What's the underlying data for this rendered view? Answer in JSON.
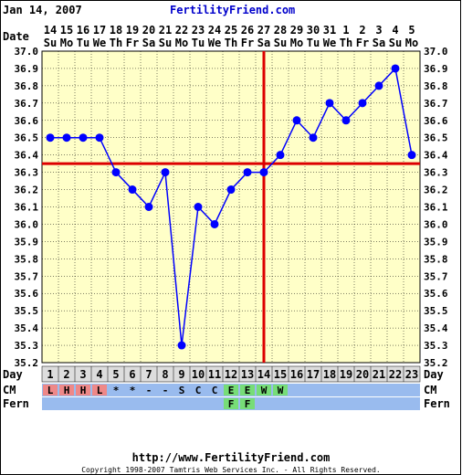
{
  "header": {
    "date_title": "Jan 14, 2007",
    "brand": "FertilityFriend.com"
  },
  "footer": {
    "url": "http://www.FertilityFriend.com",
    "copyright": "Copyright 1998-2007 Tamtris Web Services Inc. - All Rights Reserved."
  },
  "row_labels": {
    "date": "Date",
    "day": "Day",
    "cm": "CM",
    "fern": "Fern"
  },
  "colors": {
    "plot_bg": "#ffffc8",
    "line": "#0000ff",
    "marker": "#0000ff",
    "coverline": "#dd0000",
    "grid": "#000000",
    "cm_bg": "#99bbee",
    "cm_red": "#ee8888",
    "cm_green": "#77dd77",
    "day_bg": "#dddddd"
  },
  "chart_data": {
    "type": "line",
    "x": [
      "14",
      "15",
      "16",
      "17",
      "18",
      "19",
      "20",
      "21",
      "22",
      "23",
      "24",
      "25",
      "26",
      "27",
      "28",
      "29",
      "30",
      "31",
      "1",
      "2",
      "3",
      "4",
      "5"
    ],
    "weekdays": [
      "Su",
      "Mo",
      "Tu",
      "We",
      "Th",
      "Fr",
      "Sa",
      "Su",
      "Mo",
      "Tu",
      "We",
      "Th",
      "Fr",
      "Sa",
      "Su",
      "Mo",
      "Tu",
      "We",
      "Th",
      "Fr",
      "Sa",
      "Su",
      "Mo"
    ],
    "cycle_days": [
      "1",
      "2",
      "3",
      "4",
      "5",
      "6",
      "7",
      "8",
      "9",
      "10",
      "11",
      "12",
      "13",
      "14",
      "15",
      "16",
      "17",
      "18",
      "19",
      "20",
      "21",
      "22",
      "23"
    ],
    "series": [
      {
        "values": [
          36.5,
          36.5,
          36.5,
          36.5,
          36.3,
          36.2,
          36.1,
          36.3,
          35.3,
          36.1,
          36.0,
          36.2,
          36.3,
          36.3,
          36.4,
          36.6,
          36.5,
          36.7,
          36.6,
          36.7,
          36.8,
          36.9,
          36.4
        ]
      }
    ],
    "ylim": [
      35.2,
      37.0
    ],
    "yticks": [
      "35.2",
      "35.3",
      "35.4",
      "35.5",
      "35.6",
      "35.7",
      "35.8",
      "35.9",
      "36.0",
      "36.1",
      "36.2",
      "36.3",
      "36.4",
      "36.5",
      "36.6",
      "36.7",
      "36.8",
      "36.9",
      "37.0"
    ],
    "coverline": 36.35,
    "ovulation_day_index": 13,
    "cm": [
      "L",
      "H",
      "H",
      "L",
      "*",
      "*",
      "-",
      "-",
      "S",
      "C",
      "C",
      "E",
      "E",
      "W",
      "W",
      "",
      "",
      "",
      "",
      "",
      "",
      "",
      ""
    ],
    "fern": [
      "",
      "",
      "",
      "",
      "",
      "",
      "",
      "",
      "",
      "",
      "",
      "F",
      "F",
      "",
      "",
      "",
      "",
      "",
      "",
      "",
      "",
      "",
      ""
    ],
    "grid": true
  }
}
